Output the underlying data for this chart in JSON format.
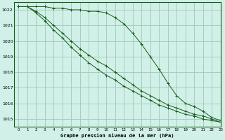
{
  "title": "Graphe pression niveau de la mer (hPa)",
  "bg_color": "#d0f0e8",
  "grid_color": "#a0c8b8",
  "line_color": "#1a5c1a",
  "xlim": [
    -0.5,
    23
  ],
  "ylim": [
    1014.5,
    1022.5
  ],
  "yticks": [
    1015,
    1016,
    1017,
    1018,
    1019,
    1020,
    1021,
    1022
  ],
  "xticks": [
    0,
    1,
    2,
    3,
    4,
    5,
    6,
    7,
    8,
    9,
    10,
    11,
    12,
    13,
    14,
    15,
    16,
    17,
    18,
    19,
    20,
    21,
    22,
    23
  ],
  "series1": [
    1022.2,
    1022.2,
    1022.2,
    1022.2,
    1022.1,
    1022.1,
    1022.0,
    1022.0,
    1021.9,
    1021.9,
    1021.8,
    1021.5,
    1021.1,
    1020.5,
    1019.8,
    1019.0,
    1018.2,
    1017.3,
    1016.5,
    1016.0,
    1015.8,
    1015.5,
    1015.1,
    1014.9
  ],
  "series2": [
    1022.2,
    1022.2,
    1021.9,
    1021.5,
    1021.0,
    1020.5,
    1020.0,
    1019.5,
    1019.1,
    1018.7,
    1018.4,
    1018.0,
    1017.6,
    1017.2,
    1016.8,
    1016.5,
    1016.2,
    1015.9,
    1015.7,
    1015.5,
    1015.3,
    1015.2,
    1015.0,
    1014.8
  ],
  "series3": [
    1022.2,
    1022.2,
    1021.8,
    1021.3,
    1020.7,
    1020.2,
    1019.6,
    1019.1,
    1018.6,
    1018.2,
    1017.8,
    1017.5,
    1017.1,
    1016.8,
    1016.5,
    1016.2,
    1015.9,
    1015.7,
    1015.5,
    1015.3,
    1015.2,
    1015.0,
    1014.9,
    1014.8
  ]
}
